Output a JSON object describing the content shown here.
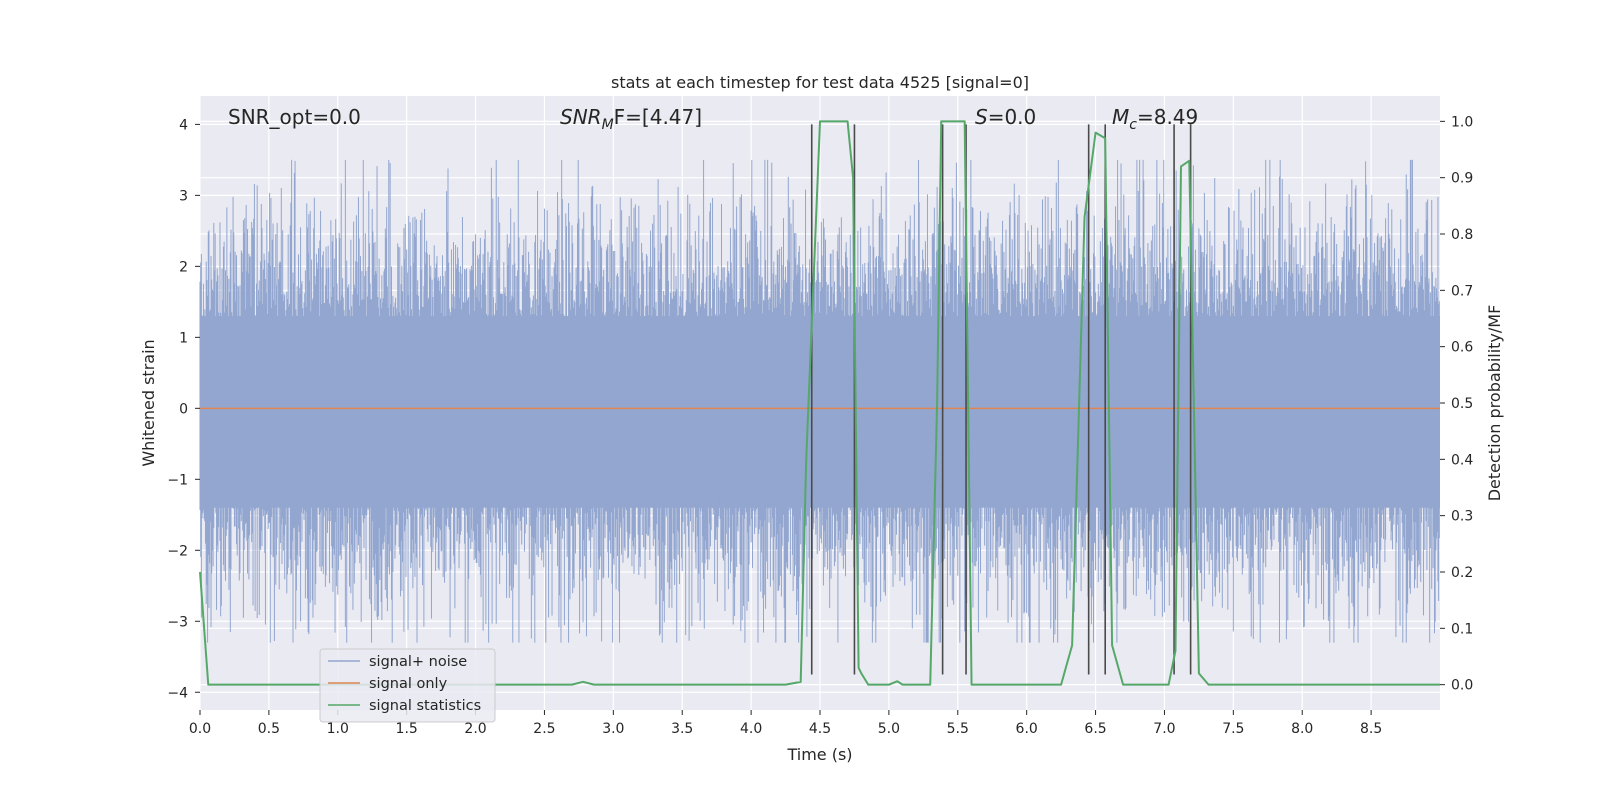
{
  "chart_data": {
    "type": "line",
    "title": "stats at each timestep for test data 4525 [signal=0]",
    "xlabel": "Time (s)",
    "ylabel": "Whitened strain",
    "ylabel_right": "Detection probability/MF",
    "xlim": [
      0.0,
      9.0
    ],
    "ylim": [
      -4.25,
      4.4
    ],
    "ylim_right": [
      -0.045,
      1.045
    ],
    "x_ticks": [
      "0.0",
      "0.5",
      "1.0",
      "1.5",
      "2.0",
      "2.5",
      "3.0",
      "3.5",
      "4.0",
      "4.5",
      "5.0",
      "5.5",
      "6.0",
      "6.5",
      "7.0",
      "7.5",
      "8.0",
      "8.5"
    ],
    "y_ticks": [
      "4",
      "3",
      "2",
      "1",
      "0",
      "−1",
      "−2",
      "−3",
      "−4"
    ],
    "y_ticks_right": [
      "1.0",
      "0.9",
      "0.8",
      "0.7",
      "0.6",
      "0.5",
      "0.4",
      "0.3",
      "0.2",
      "0.1",
      "0.0"
    ],
    "grid": true,
    "legend_position": "lower-left",
    "annotations": {
      "snr_opt": "SNR_opt=0.0",
      "snr_mf_main": "SNR",
      "snr_mf_sub": "M",
      "snr_mf_rest": "F=[4.47]",
      "s_main": "S",
      "s_rest": "=0.0",
      "mc_main": "M",
      "mc_sub": "c",
      "mc_rest": "=8.49"
    },
    "series": [
      {
        "name": "signal+ noise",
        "color": "#92a6cf",
        "description_of_shape": "dense whitened noise, approx uniform band",
        "core_band": [
          -1.4,
          1.3
        ],
        "spike_band": [
          -3.3,
          3.5
        ]
      },
      {
        "name": "signal only",
        "color": "#dd8452",
        "x": [
          0.0,
          9.0
        ],
        "y": [
          0.0,
          0.0
        ]
      },
      {
        "name": "signal statistics",
        "color": "#55a868",
        "axis": "right",
        "x": [
          0.0,
          0.06,
          0.12,
          0.5,
          1.0,
          1.5,
          2.0,
          2.5,
          2.7,
          2.78,
          2.86,
          3.0,
          3.5,
          4.0,
          4.25,
          4.36,
          4.4,
          4.5,
          4.6,
          4.7,
          4.74,
          4.78,
          4.8,
          4.85,
          5.0,
          5.06,
          5.1,
          5.3,
          5.35,
          5.38,
          5.45,
          5.55,
          5.6,
          5.68,
          5.75,
          6.0,
          6.25,
          6.33,
          6.42,
          6.5,
          6.57,
          6.62,
          6.7,
          6.9,
          7.03,
          7.08,
          7.12,
          7.18,
          7.25,
          7.32,
          7.5,
          8.0,
          8.5,
          9.0
        ],
        "y": [
          0.2,
          0.0,
          0.0,
          0.0,
          0.0,
          0.0,
          0.0,
          0.0,
          0.0,
          0.005,
          0.0,
          0.0,
          0.0,
          0.0,
          0.0,
          0.005,
          0.4,
          1.0,
          1.0,
          1.0,
          0.9,
          0.03,
          0.02,
          0.0,
          0.0,
          0.006,
          0.0,
          0.0,
          0.5,
          1.0,
          1.0,
          1.0,
          0.0,
          0.0,
          0.0,
          0.0,
          0.0,
          0.07,
          0.83,
          0.98,
          0.97,
          0.07,
          0.0,
          0.0,
          0.0,
          0.06,
          0.92,
          0.93,
          0.02,
          0.0,
          0.0,
          0.0,
          0.0,
          0.0
        ]
      }
    ],
    "vertical_lines_x": [
      4.44,
      4.75,
      5.39,
      5.56,
      6.45,
      6.57,
      7.07,
      7.19
    ],
    "vertical_lines_range": [
      -3.75,
      4.0
    ]
  },
  "colors": {
    "background": "#eaeaf2",
    "grid": "#ffffff",
    "vline": "#4a4a4a"
  }
}
